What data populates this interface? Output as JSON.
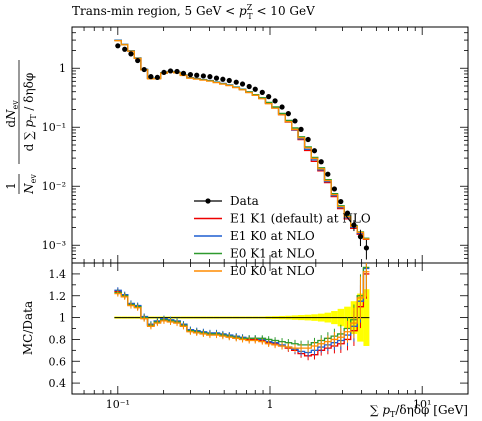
{
  "chart_data": {
    "type": "line",
    "title": "Trans-min region, 5 GeV < p_T^Z < 10 GeV",
    "title_parts": {
      "before": "Trans-min region, 5 GeV < ",
      "sym": "p",
      "sub": "T",
      "sup": "Z",
      "after": " < 10 GeV"
    },
    "xlabel": "∑ p_T/δηδφ [GeV]",
    "xlabel_parts": {
      "sum": "∑",
      "p": "p",
      "sub": "T",
      "rest": "/δηδφ [GeV]"
    },
    "ylabel_main": "(1/N_ev) dN_ev / d∑p_T/δηδφ",
    "ylabel_ratio": "MC/Data",
    "x_scale": "log",
    "xlim": [
      0.05,
      20
    ],
    "y_scale_main": "log",
    "ylim_main": [
      0.0005,
      5
    ],
    "ylim_ratio": [
      0.3,
      1.5
    ],
    "x_ticks": [
      {
        "v": 0.1,
        "label": "10⁻¹"
      },
      {
        "v": 1,
        "label": "1"
      },
      {
        "v": 10,
        "label": "10¹"
      }
    ],
    "y_ticks_main": [
      {
        "v": 1,
        "label": "1"
      },
      {
        "v": 0.1,
        "label": "10⁻¹"
      },
      {
        "v": 0.01,
        "label": "10⁻²"
      },
      {
        "v": 0.001,
        "label": "10⁻³"
      }
    ],
    "y_ticks_ratio": [
      {
        "v": 1.4,
        "label": "1.4"
      },
      {
        "v": 1.2,
        "label": "1.2"
      },
      {
        "v": 1,
        "label": "1"
      },
      {
        "v": 0.8,
        "label": "0.8"
      },
      {
        "v": 0.6,
        "label": "0.6"
      },
      {
        "v": 0.4,
        "label": "0.4"
      }
    ],
    "legend_position": "lower-left",
    "x": [
      0.1,
      0.111,
      0.122,
      0.135,
      0.149,
      0.165,
      0.182,
      0.201,
      0.222,
      0.245,
      0.27,
      0.3,
      0.33,
      0.365,
      0.403,
      0.445,
      0.49,
      0.54,
      0.6,
      0.66,
      0.73,
      0.8,
      0.89,
      0.98,
      1.08,
      1.2,
      1.32,
      1.46,
      1.6,
      1.78,
      1.96,
      2.17,
      2.4,
      2.65,
      2.92,
      3.23,
      3.56,
      3.93,
      4.3
    ],
    "series": [
      {
        "name": "Data",
        "color": "#000000",
        "kind": "points",
        "values": [
          2.4,
          2.1,
          1.75,
          1.35,
          0.95,
          0.72,
          0.7,
          0.85,
          0.9,
          0.88,
          0.82,
          0.78,
          0.76,
          0.74,
          0.72,
          0.68,
          0.65,
          0.62,
          0.58,
          0.54,
          0.49,
          0.44,
          0.39,
          0.33,
          0.28,
          0.22,
          0.17,
          0.128,
          0.092,
          0.062,
          0.04,
          0.026,
          0.016,
          0.009,
          0.0055,
          0.0035,
          0.0022,
          0.0014,
          0.0009
        ]
      },
      {
        "name": "E1 K1 (default) at NLO",
        "color": "#ee0000",
        "ratio": [
          1.24,
          1.2,
          1.12,
          1.1,
          1.0,
          0.93,
          0.96,
          0.98,
          0.97,
          0.96,
          0.93,
          0.88,
          0.87,
          0.86,
          0.85,
          0.85,
          0.84,
          0.83,
          0.82,
          0.81,
          0.8,
          0.8,
          0.79,
          0.77,
          0.76,
          0.74,
          0.72,
          0.7,
          0.67,
          0.65,
          0.66,
          0.7,
          0.72,
          0.74,
          0.76,
          0.8,
          0.88,
          1.1,
          1.4
        ]
      },
      {
        "name": "E1 K0 at NLO",
        "color": "#1f5fd0",
        "ratio": [
          1.25,
          1.21,
          1.13,
          1.11,
          1.01,
          0.94,
          0.97,
          0.99,
          0.98,
          0.97,
          0.94,
          0.89,
          0.88,
          0.87,
          0.86,
          0.86,
          0.85,
          0.84,
          0.83,
          0.82,
          0.81,
          0.81,
          0.8,
          0.78,
          0.77,
          0.75,
          0.73,
          0.71,
          0.69,
          0.68,
          0.7,
          0.73,
          0.75,
          0.77,
          0.79,
          0.84,
          0.92,
          1.15,
          1.45
        ]
      },
      {
        "name": "E0 K1 at NLO",
        "color": "#2e9a2e",
        "ratio": [
          1.23,
          1.2,
          1.12,
          1.1,
          1.0,
          0.93,
          0.96,
          0.98,
          0.97,
          0.96,
          0.93,
          0.88,
          0.87,
          0.86,
          0.85,
          0.85,
          0.84,
          0.83,
          0.82,
          0.81,
          0.81,
          0.81,
          0.81,
          0.8,
          0.79,
          0.78,
          0.77,
          0.76,
          0.75,
          0.75,
          0.77,
          0.79,
          0.81,
          0.83,
          0.85,
          0.9,
          0.98,
          1.2,
          1.46
        ]
      },
      {
        "name": "E0 K0 at NLO",
        "color": "#ff8c00",
        "ratio": [
          1.22,
          1.19,
          1.11,
          1.09,
          0.99,
          0.92,
          0.95,
          0.97,
          0.96,
          0.95,
          0.92,
          0.87,
          0.86,
          0.85,
          0.84,
          0.84,
          0.83,
          0.82,
          0.81,
          0.8,
          0.79,
          0.79,
          0.78,
          0.76,
          0.75,
          0.74,
          0.73,
          0.72,
          0.72,
          0.72,
          0.74,
          0.76,
          0.78,
          0.8,
          0.82,
          0.87,
          0.95,
          1.18,
          1.42
        ]
      }
    ],
    "data_uncertainty_band": {
      "color": "#ffff00",
      "halfwidth": [
        0.01,
        0.01,
        0.01,
        0.01,
        0.01,
        0.01,
        0.01,
        0.01,
        0.01,
        0.01,
        0.01,
        0.01,
        0.01,
        0.01,
        0.01,
        0.01,
        0.01,
        0.01,
        0.01,
        0.01,
        0.01,
        0.01,
        0.01,
        0.012,
        0.013,
        0.015,
        0.017,
        0.02,
        0.023,
        0.026,
        0.03,
        0.036,
        0.045,
        0.06,
        0.08,
        0.1,
        0.15,
        0.22,
        0.26
      ]
    }
  }
}
